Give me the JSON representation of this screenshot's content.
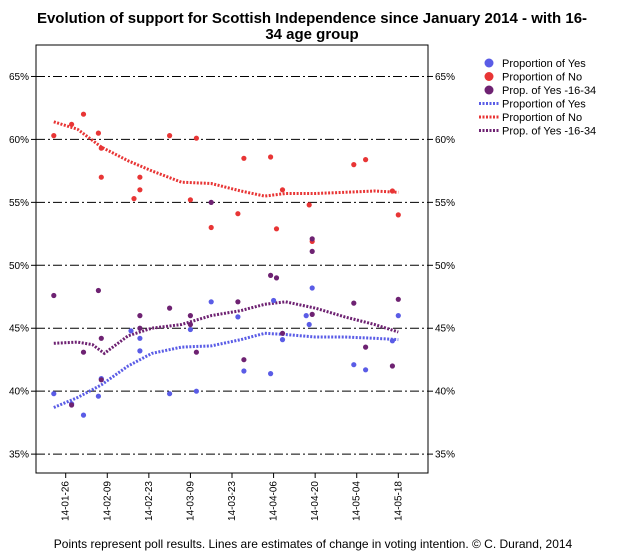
{
  "chart_data": {
    "type": "scatter",
    "title_line1": "Evolution of support for Scottish Independence since January 2014 - with 16-",
    "title_line2": "34 age group",
    "caption": "Points represent poll results. Lines are estimates of change in voting intention. © C. Durand, 2014",
    "ylim": [
      33.5,
      67.5
    ],
    "y_ticks": [
      35,
      40,
      45,
      50,
      55,
      60,
      65
    ],
    "y_tick_labels": [
      "35%",
      "40%",
      "45%",
      "50%",
      "55%",
      "60%",
      "65%"
    ],
    "x_ticks": [
      1,
      15,
      29,
      43,
      57,
      71,
      85,
      99,
      113
    ],
    "x_tick_labels": [
      "14-01-26",
      "14-02-09",
      "14-02-23",
      "14-03-09",
      "14-03-23",
      "14-04-06",
      "14-04-20",
      "14-05-04",
      "14-05-18"
    ],
    "xlim": [
      -9,
      123
    ],
    "grid": "horizontal dashed",
    "legend_position": "right",
    "colors": {
      "yes": "#5a5ce6",
      "no": "#e83535",
      "yes1634": "#6e2272"
    },
    "legend": [
      {
        "label": "Proportion of Yes",
        "kind": "point",
        "series": "yes"
      },
      {
        "label": "Proportion of No",
        "kind": "point",
        "series": "no"
      },
      {
        "label": "Prop. of Yes -16-34",
        "kind": "point",
        "series": "yes1634"
      },
      {
        "label": "Proportion of Yes",
        "kind": "line",
        "series": "yes"
      },
      {
        "label": "Proportion of No",
        "kind": "line",
        "series": "no"
      },
      {
        "label": "Prop. of Yes -16-34",
        "kind": "line",
        "series": "yes1634"
      }
    ],
    "points": {
      "yes": [
        [
          -3,
          39.8
        ],
        [
          3,
          39.0
        ],
        [
          7,
          38.1
        ],
        [
          12,
          39.6
        ],
        [
          13,
          41.0
        ],
        [
          23,
          44.8
        ],
        [
          26,
          43.2
        ],
        [
          26,
          44.2
        ],
        [
          36,
          39.8
        ],
        [
          43,
          44.9
        ],
        [
          45,
          40.0
        ],
        [
          50,
          47.1
        ],
        [
          59,
          45.9
        ],
        [
          61,
          41.6
        ],
        [
          70,
          41.4
        ],
        [
          71,
          47.2
        ],
        [
          74,
          44.1
        ],
        [
          82,
          46.0
        ],
        [
          83,
          45.3
        ],
        [
          84,
          48.2
        ],
        [
          98,
          42.1
        ],
        [
          102,
          41.7
        ],
        [
          111,
          44.0
        ],
        [
          113,
          46.0
        ]
      ],
      "no": [
        [
          -3,
          60.3
        ],
        [
          3,
          61.2
        ],
        [
          7,
          62.0
        ],
        [
          12,
          60.5
        ],
        [
          13,
          59.3
        ],
        [
          13,
          57.0
        ],
        [
          24,
          55.3
        ],
        [
          26,
          57.0
        ],
        [
          26,
          56.0
        ],
        [
          36,
          60.3
        ],
        [
          43,
          55.2
        ],
        [
          45,
          60.1
        ],
        [
          50,
          53.0
        ],
        [
          59,
          54.1
        ],
        [
          61,
          58.5
        ],
        [
          70,
          58.6
        ],
        [
          72,
          52.9
        ],
        [
          74,
          56.0
        ],
        [
          83,
          54.8
        ],
        [
          84,
          51.9
        ],
        [
          98,
          58.0
        ],
        [
          102,
          58.4
        ],
        [
          111,
          55.9
        ],
        [
          113,
          54.0
        ]
      ],
      "yes1634": [
        [
          -3,
          47.6
        ],
        [
          3,
          38.9
        ],
        [
          7,
          43.1
        ],
        [
          12,
          48.0
        ],
        [
          13,
          44.2
        ],
        [
          13,
          40.9
        ],
        [
          26,
          46.0
        ],
        [
          26,
          45.0
        ],
        [
          36,
          46.6
        ],
        [
          43,
          45.3
        ],
        [
          43,
          46.0
        ],
        [
          45,
          43.1
        ],
        [
          50,
          55.0
        ],
        [
          59,
          47.1
        ],
        [
          61,
          42.5
        ],
        [
          70,
          49.2
        ],
        [
          72,
          49.0
        ],
        [
          74,
          44.6
        ],
        [
          84,
          51.1
        ],
        [
          84,
          52.1
        ],
        [
          84,
          46.1
        ],
        [
          98,
          47.0
        ],
        [
          102,
          43.5
        ],
        [
          111,
          42.0
        ],
        [
          113,
          47.3
        ]
      ]
    },
    "lines": {
      "yes": [
        [
          -3,
          38.7
        ],
        [
          5,
          39.5
        ],
        [
          13,
          40.5
        ],
        [
          22,
          42.0
        ],
        [
          30,
          43.0
        ],
        [
          40,
          43.5
        ],
        [
          50,
          43.6
        ],
        [
          60,
          44.1
        ],
        [
          68,
          44.6
        ],
        [
          75,
          44.5
        ],
        [
          85,
          44.3
        ],
        [
          95,
          44.3
        ],
        [
          105,
          44.2
        ],
        [
          113,
          44.1
        ]
      ],
      "no": [
        [
          -3,
          61.4
        ],
        [
          5,
          60.8
        ],
        [
          13,
          59.4
        ],
        [
          22,
          58.3
        ],
        [
          30,
          57.5
        ],
        [
          40,
          56.6
        ],
        [
          50,
          56.5
        ],
        [
          60,
          55.9
        ],
        [
          68,
          55.5
        ],
        [
          75,
          55.7
        ],
        [
          85,
          55.7
        ],
        [
          95,
          55.8
        ],
        [
          105,
          55.9
        ],
        [
          113,
          55.8
        ]
      ],
      "yes1634": [
        [
          -3,
          43.8
        ],
        [
          5,
          43.9
        ],
        [
          10,
          43.7
        ],
        [
          14,
          43.0
        ],
        [
          22,
          44.4
        ],
        [
          30,
          45.0
        ],
        [
          40,
          45.3
        ],
        [
          50,
          46.0
        ],
        [
          60,
          46.4
        ],
        [
          68,
          46.9
        ],
        [
          75,
          47.1
        ],
        [
          85,
          46.6
        ],
        [
          95,
          45.9
        ],
        [
          105,
          45.3
        ],
        [
          113,
          44.7
        ]
      ]
    }
  }
}
